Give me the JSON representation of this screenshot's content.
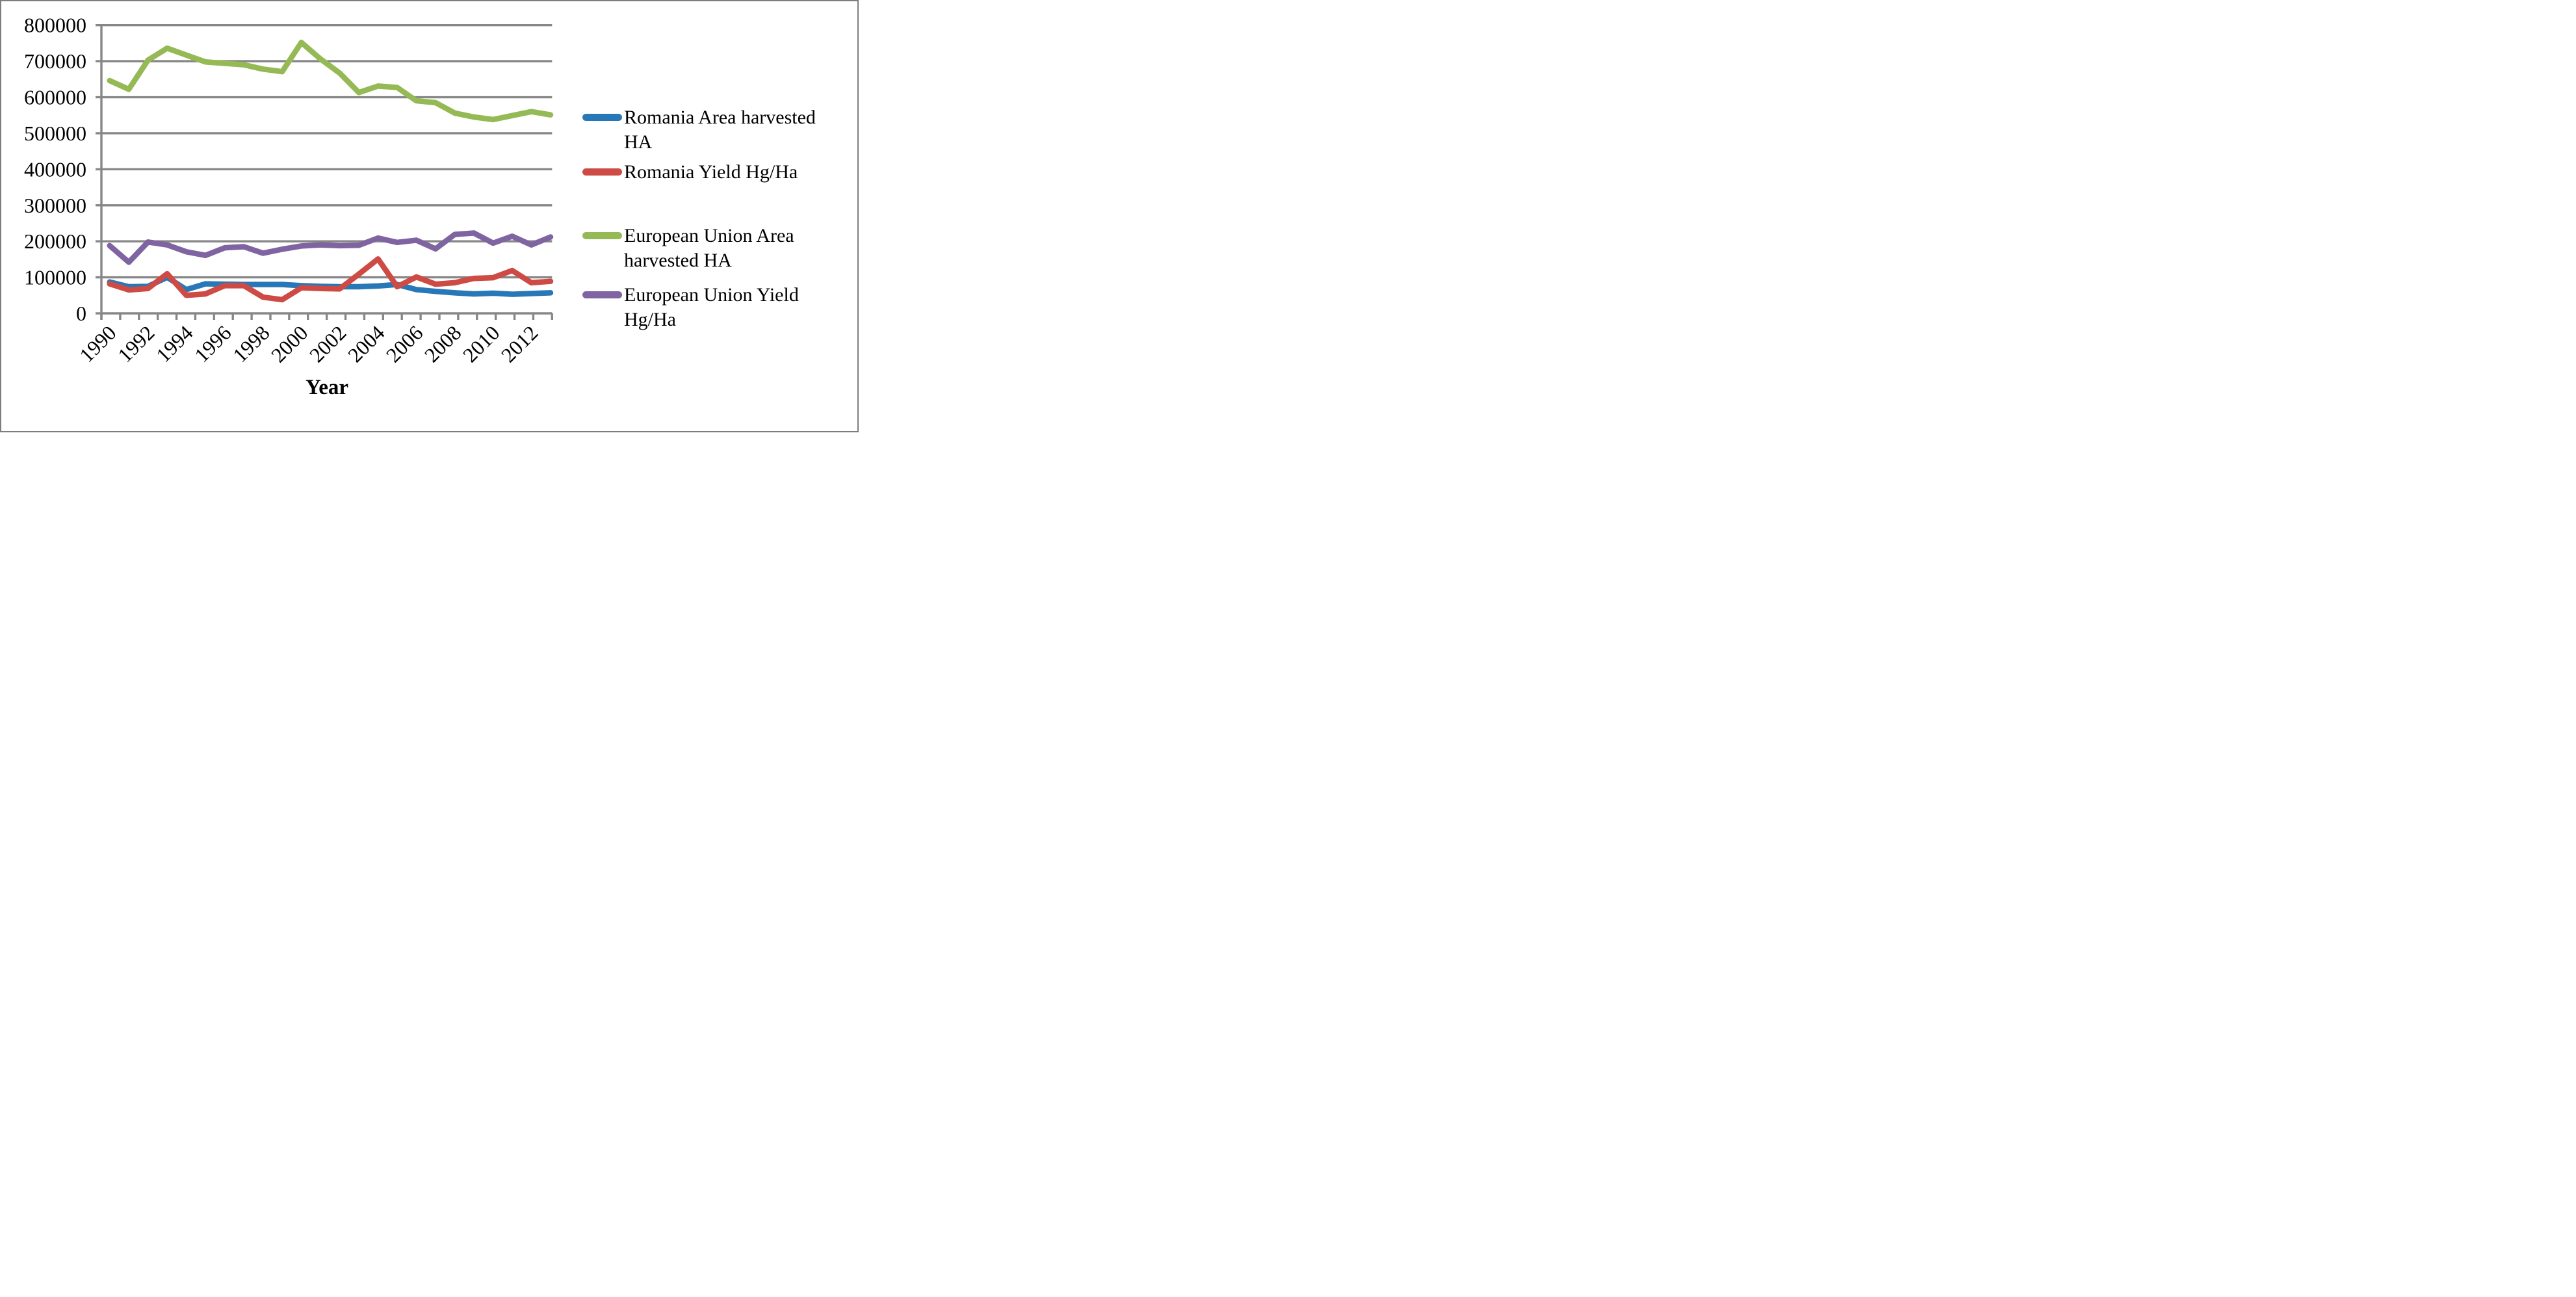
{
  "window": {
    "background": "#ffffff",
    "border_color": "#7d7d7d"
  },
  "colors": {
    "gridline": "#878787",
    "axis": "#878787",
    "text": "#000000"
  },
  "axis_titles": {
    "x": "Year"
  },
  "legend": {
    "position": "right",
    "items": [
      {
        "line1": "Romania Area harvested",
        "line2": "HA"
      },
      {
        "line1": "Romania Yield Hg/Ha"
      },
      {
        "line1": "European Union Area",
        "line2": "harvested HA"
      },
      {
        "line1": "European Union Yield",
        "line2": "Hg/Ha"
      }
    ]
  },
  "chart_data": {
    "type": "line",
    "title": "",
    "xlabel": "Year",
    "ylabel": "",
    "grid": "horizontal",
    "legend_position": "right",
    "ylim": [
      0,
      800000
    ],
    "x": [
      1990,
      1991,
      1992,
      1993,
      1994,
      1995,
      1996,
      1997,
      1998,
      1999,
      2000,
      2001,
      2002,
      2003,
      2004,
      2005,
      2006,
      2007,
      2008,
      2009,
      2010,
      2011,
      2012,
      2013
    ],
    "x_tick_labels": [
      "1990",
      "1992",
      "1994",
      "1996",
      "1998",
      "2000",
      "2002",
      "2004",
      "2006",
      "2008",
      "2010",
      "2012"
    ],
    "y_ticks": [
      0,
      100000,
      200000,
      300000,
      400000,
      500000,
      600000,
      700000,
      800000
    ],
    "y_tick_labels": [
      "0",
      "100000",
      "200000",
      "300000",
      "400000",
      "500000",
      "600000",
      "700000",
      "800000"
    ],
    "series": [
      {
        "name": "Romania Area harvested HA",
        "color": "#2878B8",
        "values": [
          87000,
          74000,
          75000,
          100000,
          66000,
          82000,
          81000,
          80000,
          80000,
          80000,
          77000,
          75000,
          74000,
          74000,
          76000,
          80000,
          66000,
          61000,
          57000,
          54000,
          56000,
          53000,
          55000,
          57000
        ]
      },
      {
        "name": "Romania Yield Hg/Ha",
        "color": "#CE4A44",
        "values": [
          82000,
          65000,
          69000,
          110000,
          50000,
          54000,
          77000,
          77000,
          45000,
          38000,
          71000,
          69000,
          68000,
          109000,
          151000,
          74000,
          101000,
          81000,
          85000,
          97000,
          99000,
          119000,
          85000,
          89000
        ]
      },
      {
        "name": "European Union Area harvested HA",
        "color": "#95BA55",
        "values": [
          646000,
          622000,
          703000,
          736000,
          717000,
          698000,
          694000,
          690000,
          678000,
          671000,
          752000,
          706000,
          667000,
          613000,
          631000,
          627000,
          590000,
          585000,
          556000,
          545000,
          538000,
          549000,
          560000,
          551000
        ]
      },
      {
        "name": "European Union Yield Hg/Ha",
        "color": "#8064A2",
        "values": [
          188000,
          142000,
          198000,
          190000,
          171000,
          161000,
          182000,
          185000,
          167000,
          178000,
          187000,
          190000,
          188000,
          189000,
          209000,
          197000,
          203000,
          179000,
          219000,
          223000,
          195000,
          214000,
          190000,
          212000
        ]
      }
    ]
  }
}
